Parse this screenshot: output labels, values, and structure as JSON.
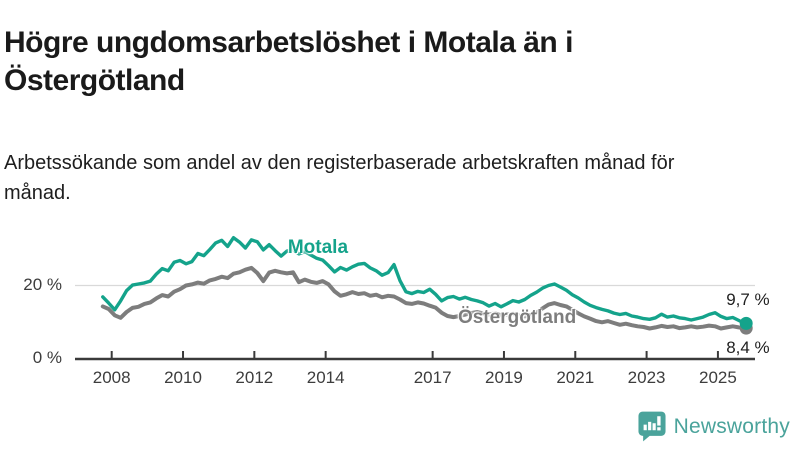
{
  "page": {
    "title": "Högre ungdomsarbetslöshet i Motala än i Östergötland",
    "subtitle": "Arbetssökande som andel av den registerbaserade arbetskraften månad för månad."
  },
  "footer": {
    "brand": "Newsworthy",
    "brand_color": "#4aa39b",
    "logo_icon": "bar-chart-speech-bubble-icon"
  },
  "colors": {
    "motala": "#14a38b",
    "ostergotland": "#7d7d7d",
    "axis": "#3a3a3a",
    "grid": "#d9d9d9",
    "text": "#1a1a1a"
  },
  "chart_data": {
    "type": "line",
    "title": "Högre ungdomsarbetslöshet i Motala än i Östergötland",
    "subtitle": "Arbetssökande som andel av den registerbaserade arbetskraften månad för månad.",
    "y_unit": "%",
    "grid": "horizontal-only",
    "legend_position": "inline-labels",
    "ylim": [
      0,
      37
    ],
    "x_range": [
      2007.6,
      2025.95
    ],
    "x_start": 2007.75,
    "x_step": 0.16667,
    "yticks": [
      {
        "value": 0,
        "label": "0 %"
      },
      {
        "value": 20,
        "label": "20 %"
      }
    ],
    "xticks": [
      {
        "value": 2008,
        "label": "2008"
      },
      {
        "value": 2010,
        "label": "2010"
      },
      {
        "value": 2012,
        "label": "2012"
      },
      {
        "value": 2014,
        "label": "2014"
      },
      {
        "value": 2017,
        "label": "2017"
      },
      {
        "value": 2019,
        "label": "2019"
      },
      {
        "value": 2021,
        "label": "2021"
      },
      {
        "value": 2023,
        "label": "2023"
      },
      {
        "value": 2025,
        "label": "2025"
      }
    ],
    "series": [
      {
        "name": "Östergötland",
        "slug": "ostergotland",
        "color": "#7d7d7d",
        "stroke_width": 4,
        "end_label": "8,4 %",
        "end_value": 8.4,
        "label_anchor": {
          "x": 2017.71,
          "y": 10.9
        },
        "values": [
          14.3,
          13.6,
          11.9,
          11.2,
          12.8,
          13.9,
          14.2,
          15.0,
          15.4,
          16.5,
          17.4,
          17.0,
          18.3,
          19.0,
          20.0,
          20.3,
          20.8,
          20.5,
          21.4,
          21.8,
          22.4,
          22.0,
          23.2,
          23.6,
          24.3,
          24.8,
          23.4,
          21.2,
          23.5,
          24.0,
          23.6,
          23.3,
          23.6,
          20.9,
          21.6,
          21.0,
          20.7,
          21.2,
          20.3,
          18.4,
          17.2,
          17.6,
          18.2,
          17.7,
          17.9,
          17.2,
          17.5,
          16.8,
          17.2,
          17.0,
          16.2,
          15.2,
          15.0,
          15.4,
          15.1,
          14.5,
          14.0,
          12.6,
          11.7,
          11.4,
          11.7,
          12.1,
          12.5,
          12.8,
          12.4,
          12.1,
          12.4,
          11.9,
          12.1,
          12.3,
          11.8,
          11.6,
          12.0,
          12.6,
          13.8,
          14.8,
          15.2,
          14.7,
          14.3,
          13.4,
          12.4,
          11.6,
          11.0,
          10.3,
          10.0,
          10.3,
          9.8,
          9.3,
          9.6,
          9.2,
          8.9,
          8.7,
          8.3,
          8.6,
          9.0,
          8.7,
          8.9,
          8.4,
          8.6,
          8.9,
          8.6,
          8.8,
          9.1,
          8.9,
          8.3,
          8.6,
          8.9,
          8.6,
          8.4
        ]
      },
      {
        "name": "Motala",
        "slug": "motala",
        "color": "#14a38b",
        "stroke_width": 3.4,
        "end_label": "9,7 %",
        "end_value": 9.7,
        "label_anchor": {
          "x": 2012.94,
          "y": 29.9
        },
        "values": [
          16.9,
          15.2,
          13.4,
          15.8,
          18.6,
          20.1,
          20.4,
          20.7,
          21.2,
          23.1,
          24.6,
          24.0,
          26.3,
          26.8,
          25.9,
          26.5,
          28.7,
          28.1,
          29.8,
          31.6,
          32.3,
          30.6,
          33.0,
          31.8,
          30.2,
          32.4,
          31.9,
          29.7,
          31.1,
          29.5,
          28.0,
          29.4,
          29.8,
          28.6,
          29.2,
          28.3,
          27.4,
          26.9,
          25.4,
          23.7,
          24.9,
          24.2,
          25.1,
          25.8,
          26.0,
          24.8,
          24.0,
          22.8,
          23.5,
          25.7,
          21.3,
          18.3,
          17.8,
          18.4,
          18.1,
          19.0,
          17.6,
          15.8,
          16.7,
          17.0,
          16.3,
          16.8,
          16.2,
          15.8,
          15.3,
          14.4,
          15.1,
          14.2,
          15.0,
          15.9,
          15.5,
          16.2,
          17.3,
          18.2,
          19.3,
          20.0,
          20.4,
          19.6,
          18.7,
          17.5,
          16.6,
          15.5,
          14.6,
          14.0,
          13.5,
          13.1,
          12.5,
          12.1,
          12.4,
          11.7,
          11.4,
          11.0,
          10.8,
          11.2,
          12.2,
          11.4,
          11.7,
          11.2,
          11.0,
          10.6,
          11.0,
          11.4,
          12.1,
          12.6,
          11.6,
          11.0,
          11.3,
          10.5,
          9.7
        ]
      }
    ]
  }
}
